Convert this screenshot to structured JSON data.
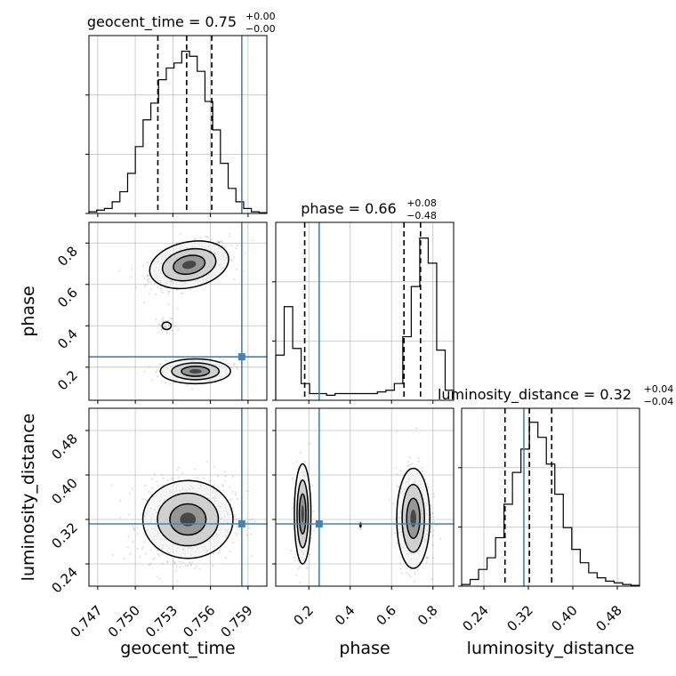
{
  "chart_data": {
    "type": "corner",
    "parameters": [
      "geocent_time",
      "phase",
      "luminosity_distance"
    ],
    "axis_labels": {
      "x": [
        "geocent_time",
        "phase",
        "luminosity_distance"
      ],
      "y": [
        "phase",
        "luminosity_distance"
      ]
    },
    "titles": [
      {
        "param": "geocent_time",
        "prefix": "geocent_time = 0.75",
        "sup": "+0.00",
        "sub": "−0.00"
      },
      {
        "param": "phase",
        "prefix": "phase = 0.66",
        "sup": "+0.08",
        "sub": "−0.48"
      },
      {
        "param": "luminosity_distance",
        "prefix": "luminosity_distance = 0.32",
        "sup": "+0.04",
        "sub": "−0.04"
      }
    ],
    "ranges": {
      "geocent_time": [
        0.7463,
        0.7605
      ],
      "phase": [
        0.04,
        0.9
      ],
      "luminosity_distance": [
        0.2,
        0.52
      ]
    },
    "ticks": {
      "geocent_time": {
        "values": [
          0.747,
          0.75,
          0.753,
          0.756,
          0.759
        ],
        "labels": [
          "0.747",
          "0.750",
          "0.753",
          "0.756",
          "0.759"
        ]
      },
      "phase": {
        "values": [
          0.2,
          0.4,
          0.6,
          0.8
        ],
        "labels": [
          "0.2",
          "0.4",
          "0.6",
          "0.8"
        ]
      },
      "luminosity_distance": {
        "values": [
          0.24,
          0.32,
          0.4,
          0.48
        ],
        "labels": [
          "0.24",
          "0.32",
          "0.40",
          "0.48"
        ]
      }
    },
    "truths": {
      "geocent_time": 0.7585,
      "phase": 0.25,
      "luminosity_distance": 0.312
    },
    "quantiles": {
      "geocent_time": [
        0.7518,
        0.7541,
        0.7561
      ],
      "phase": [
        0.18,
        0.66,
        0.74
      ],
      "luminosity_distance": [
        0.278,
        0.322,
        0.362
      ]
    },
    "histograms": {
      "geocent_time": [
        0.01,
        0.02,
        0.03,
        0.07,
        0.13,
        0.24,
        0.4,
        0.56,
        0.66,
        0.8,
        0.87,
        0.9,
        0.97,
        0.94,
        0.85,
        0.67,
        0.5,
        0.3,
        0.15,
        0.07,
        0.03,
        0.01,
        0.005
      ],
      "phase": [
        0.27,
        0.56,
        0.31,
        0.1,
        0.04,
        0.04,
        0.03,
        0.04,
        0.04,
        0.04,
        0.04,
        0.04,
        0.05,
        0.06,
        0.1,
        0.38,
        0.68,
        0.97,
        0.82,
        0.3,
        0.06
      ],
      "luminosity_distance": [
        0.01,
        0.04,
        0.1,
        0.17,
        0.29,
        0.49,
        0.68,
        0.82,
        0.98,
        0.89,
        0.73,
        0.55,
        0.35,
        0.22,
        0.14,
        0.08,
        0.05,
        0.03,
        0.02,
        0.01,
        0.005
      ]
    },
    "grid": true,
    "colors": {
      "truth": "#4682b4",
      "line": "#000000",
      "grid": "#c0c0c0",
      "points": "#888888"
    }
  }
}
